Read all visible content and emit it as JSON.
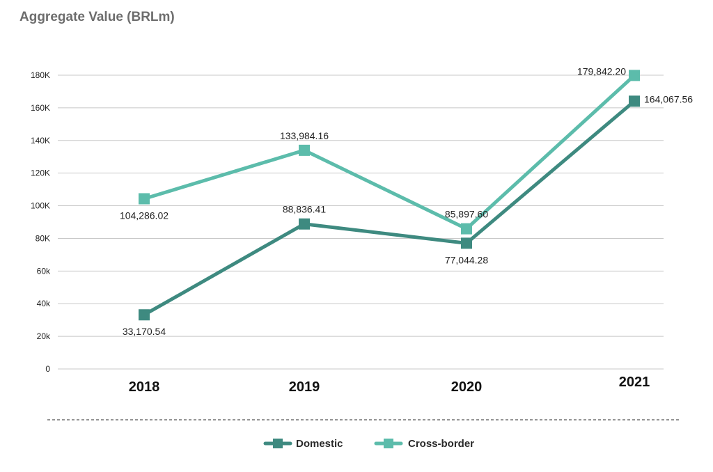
{
  "title": "Aggregate Value (BRLm)",
  "colors": {
    "domestic": "#3e8a80",
    "cross_border": "#5cbcab",
    "grid": "#c8c8c8",
    "divider": "#555555"
  },
  "chart_data": {
    "type": "line",
    "title": "Aggregate Value (BRLm)",
    "xlabel": "",
    "ylabel": "",
    "categories": [
      "2018",
      "2019",
      "2020",
      "2021"
    ],
    "ylim": [
      0,
      180000
    ],
    "y_ticks": [
      {
        "value": 0,
        "label": "0"
      },
      {
        "value": 20000,
        "label": "20k"
      },
      {
        "value": 40000,
        "label": "40k"
      },
      {
        "value": 60000,
        "label": "60k"
      },
      {
        "value": 80000,
        "label": "80K"
      },
      {
        "value": 100000,
        "label": "100K"
      },
      {
        "value": 120000,
        "label": "120K"
      },
      {
        "value": 140000,
        "label": "140K"
      },
      {
        "value": 160000,
        "label": "160K"
      },
      {
        "value": 180000,
        "label": "180K"
      }
    ],
    "grid": true,
    "legend_position": "bottom-center",
    "series": [
      {
        "name": "Domestic",
        "color": "#3e8a80",
        "values": [
          33170.54,
          88836.41,
          77044.28,
          164067.56
        ],
        "labels": [
          "33,170.54",
          "88,836.41",
          "77,044.28",
          "164,067.56"
        ],
        "label_positions": [
          "below",
          "above",
          "below",
          "right"
        ]
      },
      {
        "name": "Cross-border",
        "color": "#5cbcab",
        "values": [
          104286.02,
          133984.16,
          85897.6,
          179842.2
        ],
        "labels": [
          "104,286.02",
          "133,984.16",
          "85,897.60",
          "179,842.20"
        ],
        "label_positions": [
          "below",
          "above",
          "above",
          "left"
        ]
      }
    ]
  }
}
